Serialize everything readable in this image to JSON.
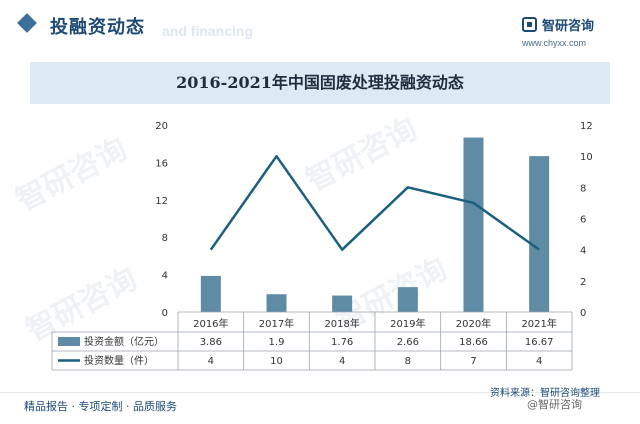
{
  "header": {
    "section_title": "投融资动态",
    "section_subtitle": "and financing",
    "logo_name": "智研咨询",
    "logo_url": "www.chyxx.com"
  },
  "watermark_text": "智研咨询",
  "chart_data": {
    "type": "bar",
    "title": "2016-2021年中国固废处理投融资动态",
    "categories": [
      "2016年",
      "2017年",
      "2018年",
      "2019年",
      "2020年",
      "2021年"
    ],
    "series": [
      {
        "name": "投资金额（亿元）",
        "type": "bar",
        "axis": "left",
        "values": [
          3.86,
          1.9,
          1.76,
          2.66,
          18.66,
          16.67
        ],
        "labels": [
          "3.86",
          "1.9",
          "1.76",
          "2.66",
          "18.66",
          "16.67"
        ],
        "color": "#5f8ba5"
      },
      {
        "name": "投资数量（件）",
        "type": "line",
        "axis": "right",
        "values": [
          4,
          10,
          4,
          8,
          7,
          4
        ],
        "labels": [
          "4",
          "10",
          "4",
          "8",
          "7",
          "4"
        ],
        "color": "#1b5f7e"
      }
    ],
    "y_left": {
      "min": 0,
      "max": 20,
      "ticks": [
        0,
        4,
        8,
        12,
        16,
        20
      ]
    },
    "y_right": {
      "min": 0,
      "max": 12,
      "ticks": [
        0,
        2,
        4,
        6,
        8,
        10,
        12
      ]
    },
    "grid": false,
    "legend": "data-table"
  },
  "footer": {
    "tagline": "精品报告 · 专项定制 · 品质服务",
    "source": "资料来源：智研咨询整理",
    "mark": "@智研咨询"
  }
}
